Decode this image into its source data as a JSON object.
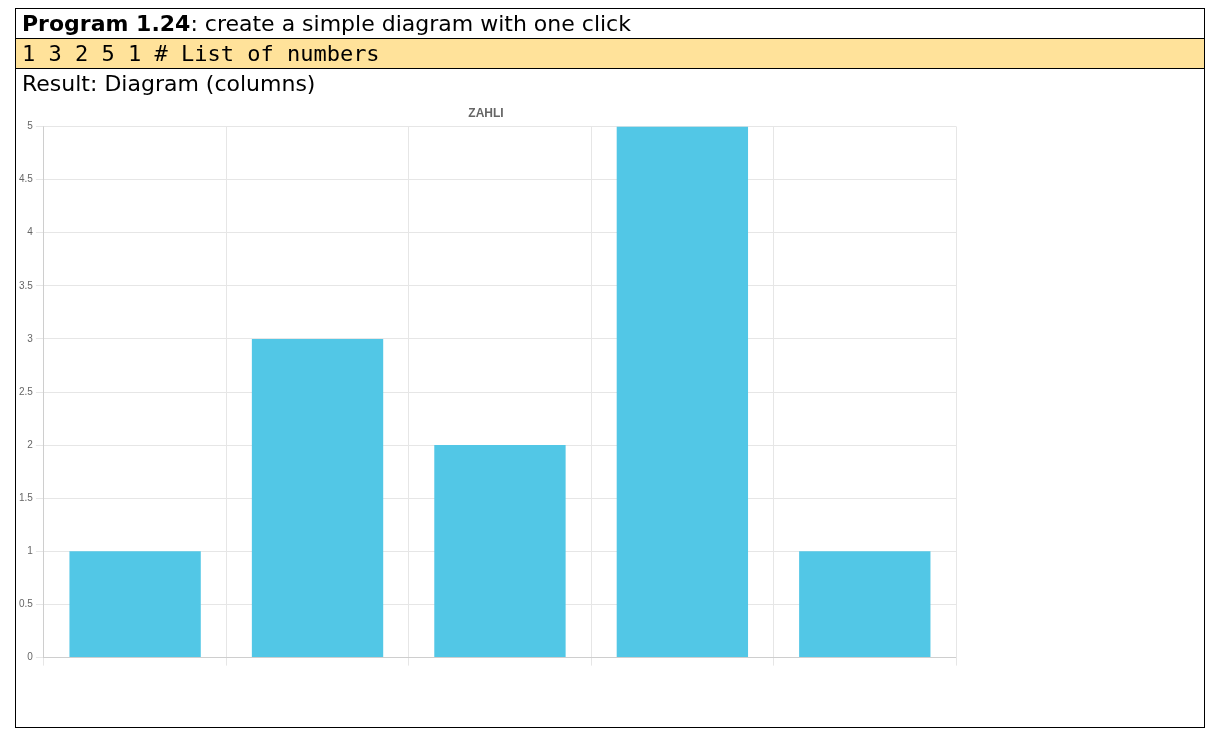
{
  "chart_data": {
    "type": "bar",
    "title": "ZAHLI",
    "annotations": [
      "Program 1.24: create a simple diagram with one click",
      "1 3 2 5 1 # List of numbers",
      "Result: Diagram (columns)"
    ],
    "categories": [
      null,
      null,
      null,
      null,
      null
    ],
    "values": [
      1,
      3,
      2,
      5,
      1
    ],
    "color": "#52c7e6",
    "ylim": [
      0,
      5
    ],
    "yticks": [
      0,
      0.5,
      1,
      1.5,
      2,
      2.5,
      3,
      3.5,
      4,
      4.5,
      5
    ],
    "grid": true,
    "legend": false
  }
}
